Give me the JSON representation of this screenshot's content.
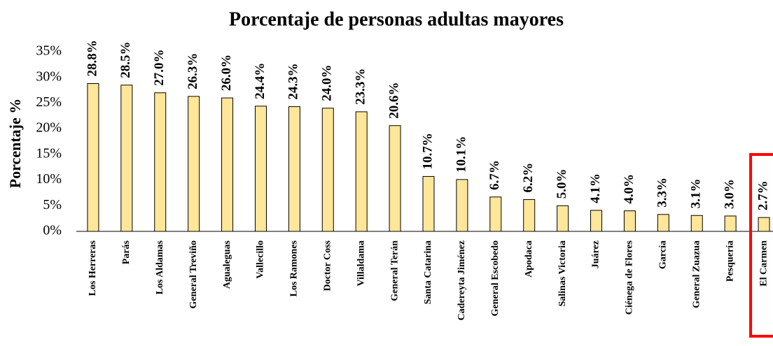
{
  "chart_data": {
    "type": "bar",
    "title": "Porcentaje de personas adultas mayores",
    "y_label": "Porcentaje %",
    "categories": [
      "Los Herreras",
      "Parás",
      "Los Aldamas",
      "General Treviño",
      "Agualeguas",
      "Vallecillo",
      "Los Ramones",
      "Doctor Coss",
      "Villaldama",
      "General Terán",
      "Santa Catarina",
      "Cadereyta Jiménez",
      "General Escobedo",
      "Apodaca",
      "Salinas Victoria",
      "Juárez",
      "Ciénega de Flores",
      "García",
      "General Zuazua",
      "Pesquería",
      "El Carmen"
    ],
    "values": [
      28.8,
      28.5,
      27.0,
      26.3,
      26.0,
      24.4,
      24.3,
      24.0,
      23.3,
      20.6,
      10.7,
      10.1,
      6.7,
      6.2,
      5.0,
      4.1,
      4.0,
      3.3,
      3.1,
      3.0,
      2.7
    ],
    "value_labels": [
      "28.8%",
      "28.5%",
      "27.0%",
      "26.3%",
      "26.0%",
      "24.4%",
      "24.3%",
      "24.0%",
      "23.3%",
      "20.6%",
      "10.7%",
      "10.1%",
      "6.7%",
      "6.2%",
      "5.0%",
      "4.1%",
      "4.0%",
      "3.3%",
      "3.1%",
      "3.0%",
      "2.7%"
    ],
    "color": "#ffe699",
    "ylim": [
      0,
      35
    ],
    "yticks": [
      {
        "value": 0,
        "label": "0%"
      },
      {
        "value": 5,
        "label": "5%"
      },
      {
        "value": 10,
        "label": "10%"
      },
      {
        "value": 15,
        "label": "15%"
      },
      {
        "value": 20,
        "label": "20%"
      },
      {
        "value": 25,
        "label": "25%"
      },
      {
        "value": 30,
        "label": "30%"
      },
      {
        "value": 35,
        "label": "35%"
      }
    ],
    "grid": false
  }
}
